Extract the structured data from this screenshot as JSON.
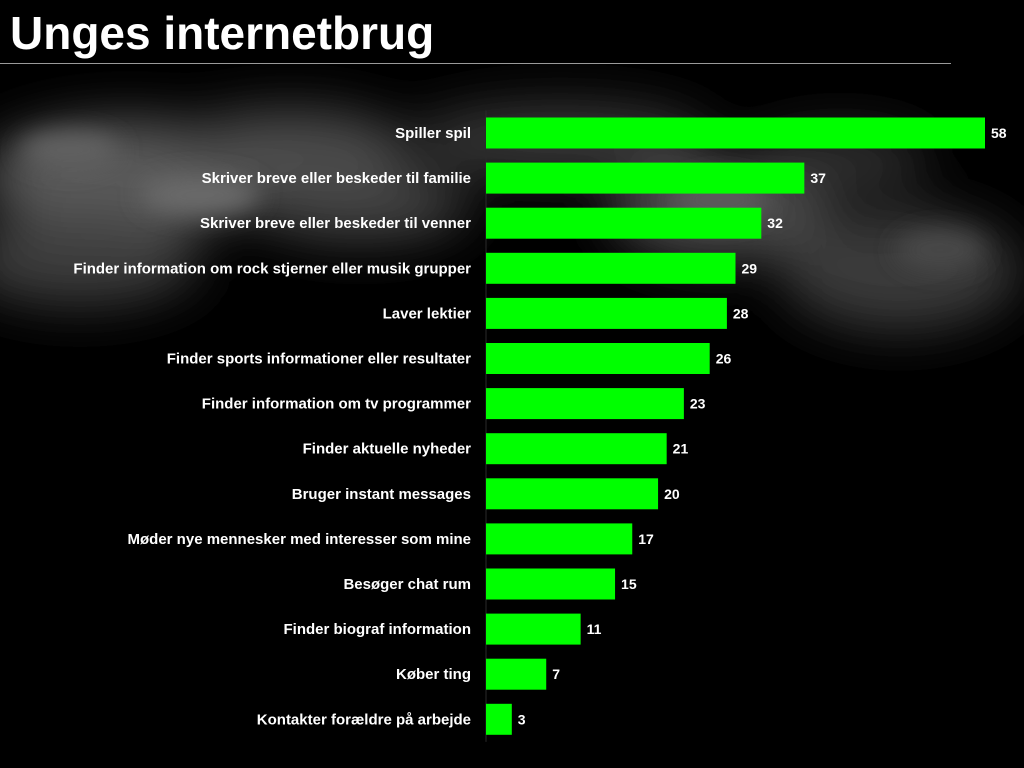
{
  "slide": {
    "title": "Unges internetbrug"
  },
  "colors": {
    "background": "#000000",
    "bar": "#00ff00",
    "label_text": "#ffffff"
  },
  "chart_data": {
    "type": "bar",
    "orientation": "horizontal",
    "categories": [
      "Spiller spil",
      "Skriver breve eller beskeder til familie",
      "Skriver breve eller beskeder til venner",
      "Finder information om rock stjerner eller musik grupper",
      "Laver lektier",
      "Finder sports informationer eller resultater",
      "Finder information om tv programmer",
      "Finder aktuelle nyheder",
      "Bruger instant messages",
      "Møder nye mennesker med interesser som mine",
      "Besøger chat rum",
      "Finder biograf information",
      "Køber ting",
      "Kontakter forældre på arbejde"
    ],
    "values": [
      58,
      37,
      32,
      29,
      28,
      26,
      23,
      21,
      20,
      17,
      15,
      11,
      7,
      3
    ],
    "data_labels": true,
    "grid": false,
    "legend": "none"
  }
}
